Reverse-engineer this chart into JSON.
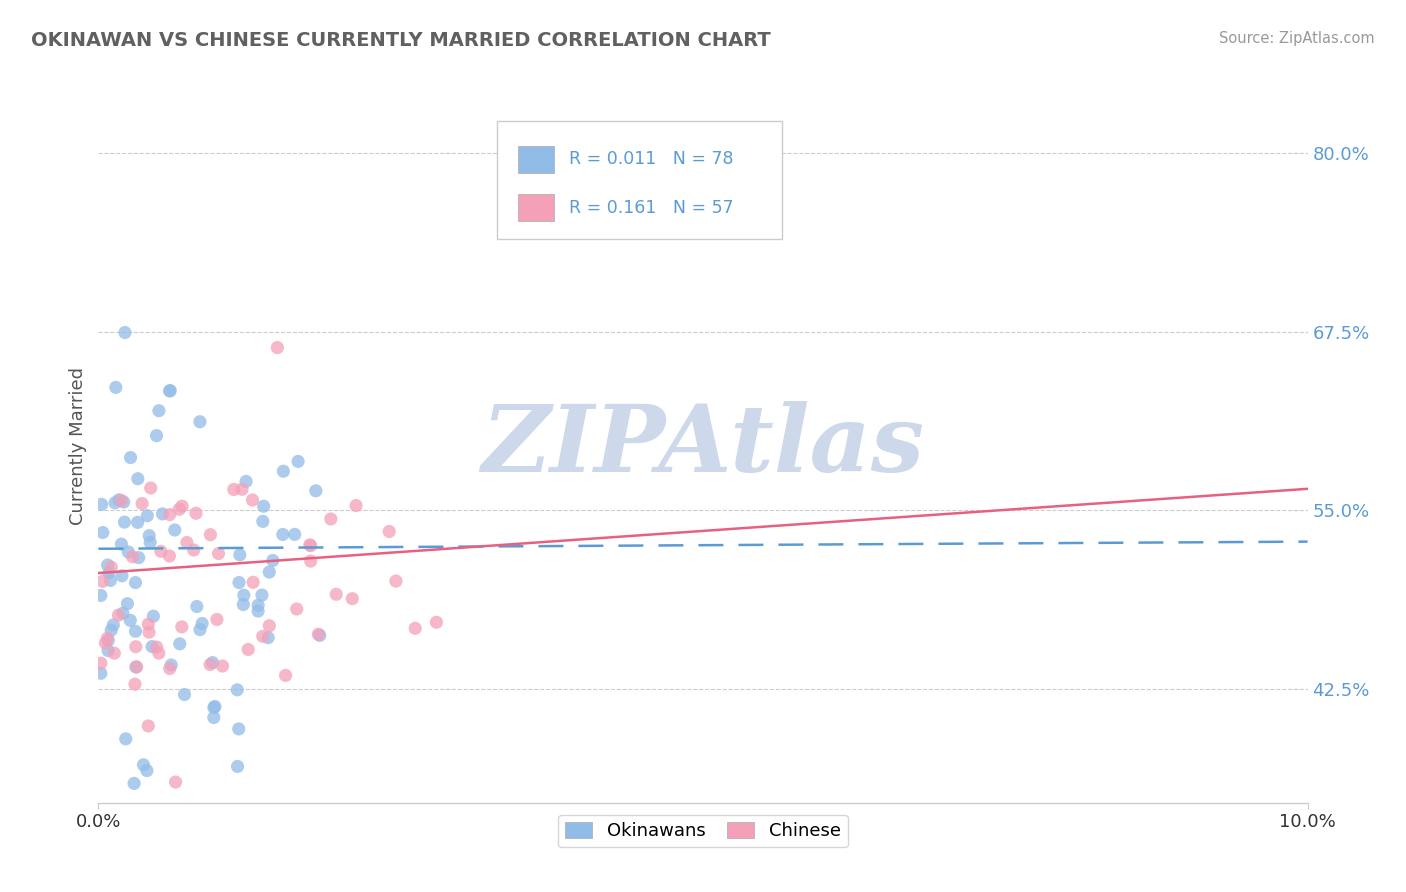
{
  "title": "OKINAWAN VS CHINESE CURRENTLY MARRIED CORRELATION CHART",
  "source": "Source: ZipAtlas.com",
  "ylabel": "Currently Married",
  "y_ticks": [
    0.425,
    0.55,
    0.675,
    0.8
  ],
  "y_tick_labels": [
    "42.5%",
    "55.0%",
    "67.5%",
    "80.0%"
  ],
  "x_range": [
    0.0,
    0.1
  ],
  "y_range": [
    0.345,
    0.845
  ],
  "okinawan_color": "#92bce8",
  "chinese_color": "#f4a0b8",
  "okinawan_line_color": "#5b9bd5",
  "chinese_line_color": "#e86080",
  "tick_color": "#5b9bd5",
  "grid_color": "#cccccc",
  "R_okinawan": 0.011,
  "N_okinawan": 78,
  "R_chinese": 0.161,
  "N_chinese": 57,
  "legend_label_1": "Okinawans",
  "legend_label_2": "Chinese",
  "watermark": "ZIPAtlas",
  "watermark_color": "#cdd8ea",
  "background_color": "#ffffff",
  "ok_line_y0": 0.523,
  "ok_line_y1": 0.528,
  "ch_line_y0": 0.506,
  "ch_line_y1": 0.565
}
